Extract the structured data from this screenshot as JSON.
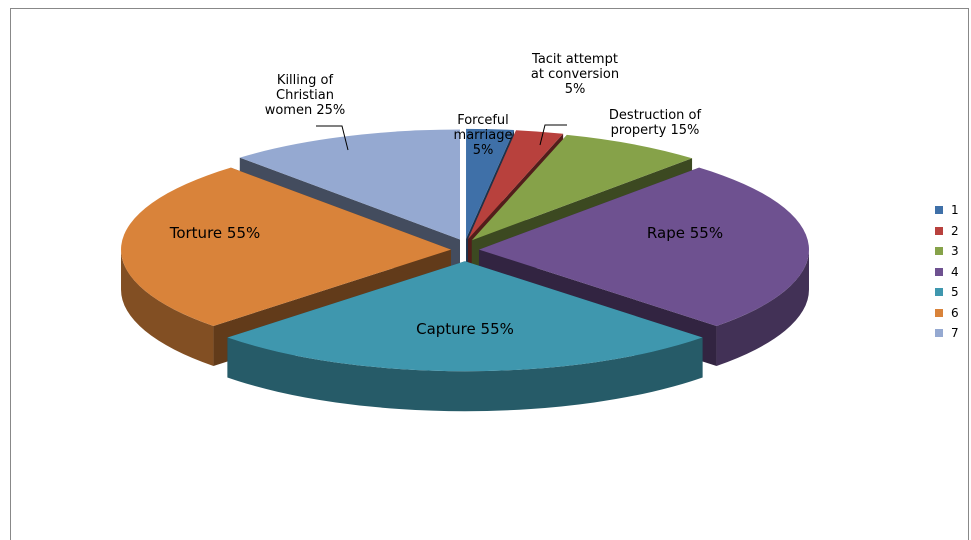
{
  "chart_data": {
    "type": "pie3d",
    "categories": [
      "1",
      "2",
      "3",
      "4",
      "5",
      "6",
      "7"
    ],
    "labels": [
      "Forceful marriage",
      "Tacit attempt at conversion",
      "Destruction of property",
      "Rape",
      "Capture",
      "Torture",
      "Killing of Christian women"
    ],
    "values": [
      5,
      5,
      15,
      55,
      55,
      55,
      25
    ],
    "value_labels": [
      "5%",
      "5%",
      "15%",
      "55%",
      "55%",
      "55%",
      "25%"
    ],
    "colors": [
      "#3f70a8",
      "#b8413d",
      "#86a249",
      "#6e5190",
      "#3f97ae",
      "#d9833a",
      "#95a9d1"
    ],
    "legend": "right"
  }
}
